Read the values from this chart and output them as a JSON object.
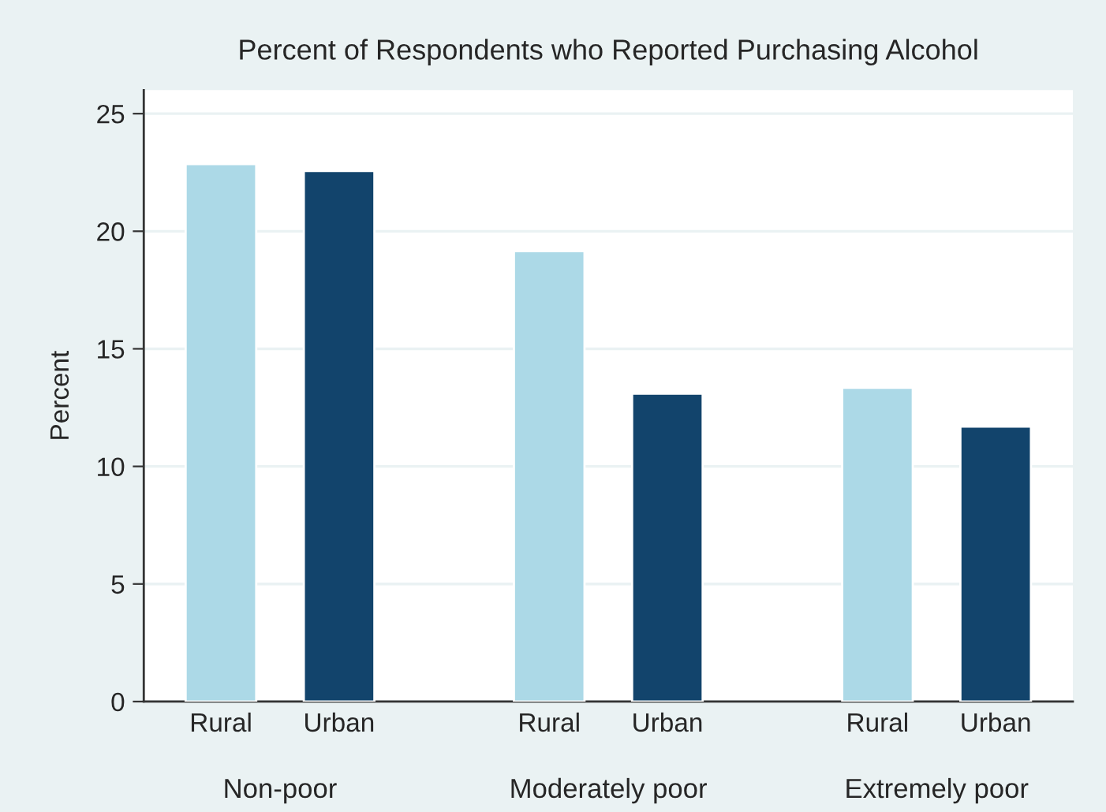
{
  "chart_data": {
    "type": "bar",
    "title": "Percent of Respondents who Reported Purchasing Alcohol",
    "ylabel": "Percent",
    "categories": [
      "Non-poor",
      "Moderately poor",
      "Extremely poor"
    ],
    "series": [
      {
        "name": "Rural",
        "color": "#acd9e7",
        "values": [
          22.86,
          19.15,
          13.34
        ]
      },
      {
        "name": "Urban",
        "color": "#12446c",
        "values": [
          22.56,
          13.09,
          11.69
        ]
      }
    ],
    "ylim": [
      0,
      26
    ],
    "yticks": [
      0,
      5,
      10,
      15,
      20,
      25
    ],
    "grid": "y",
    "legend": false
  }
}
